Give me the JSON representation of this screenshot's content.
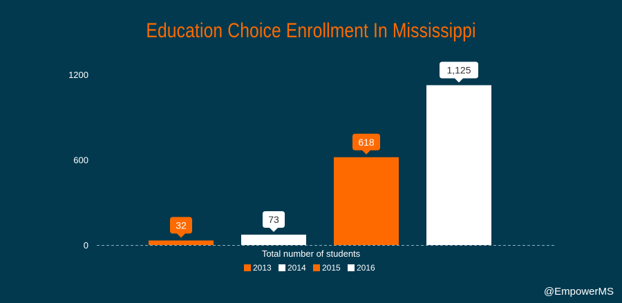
{
  "chart_data": {
    "type": "bar",
    "title": "Education Choice Enrollment In Mississippi",
    "xlabel": "Total number of students",
    "ylabel": "",
    "categories": [
      "Total number of students"
    ],
    "series": [
      {
        "name": "2013",
        "values": [
          32
        ],
        "label": "32",
        "color": "#ff6a00"
      },
      {
        "name": "2014",
        "values": [
          73
        ],
        "label": "73",
        "color": "#ffffff"
      },
      {
        "name": "2015",
        "values": [
          618
        ],
        "label": "618",
        "color": "#ff6a00"
      },
      {
        "name": "2016",
        "values": [
          1125
        ],
        "label": "1,125",
        "color": "#ffffff"
      }
    ],
    "yticks": [
      0,
      600,
      1200
    ],
    "ylim": [
      0,
      1200
    ],
    "grid": false,
    "legend": "bottom-center"
  },
  "credit": "@EmpowerMS",
  "colors": {
    "background": "#02394f",
    "accent": "#ff6a00",
    "light": "#ffffff"
  }
}
